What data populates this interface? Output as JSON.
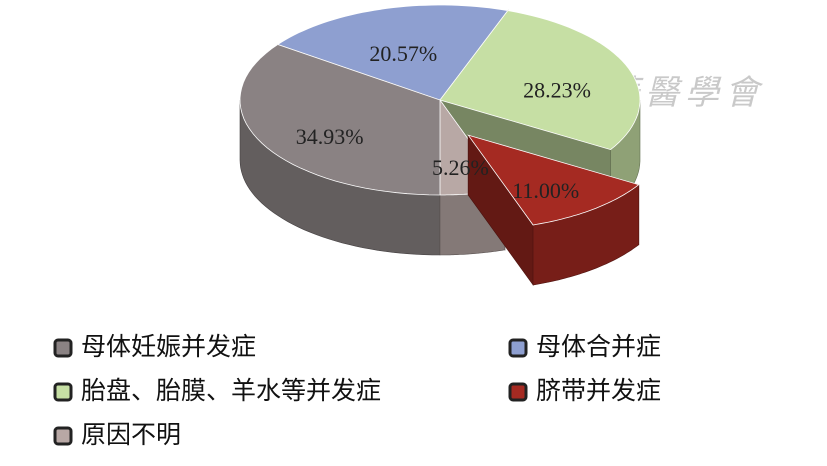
{
  "chart_data": {
    "type": "pie",
    "categories": [
      "母体妊娠并发症",
      "母体合并症",
      "胎盘、胎膜、羊水等并发症",
      "脐带并发症",
      "原因不明"
    ],
    "values": [
      34.93,
      20.57,
      28.23,
      11.0,
      5.26
    ],
    "value_labels": [
      "34.93%",
      "20.57%",
      "28.23%",
      "11.00%",
      "5.26%"
    ],
    "colors": [
      "#8a8283",
      "#8e9fd0",
      "#c6dfa4",
      "#a52a22",
      "#b8a8a5"
    ],
    "exploded": [
      false,
      false,
      false,
      true,
      false
    ],
    "watermark": "中華醫學會"
  }
}
